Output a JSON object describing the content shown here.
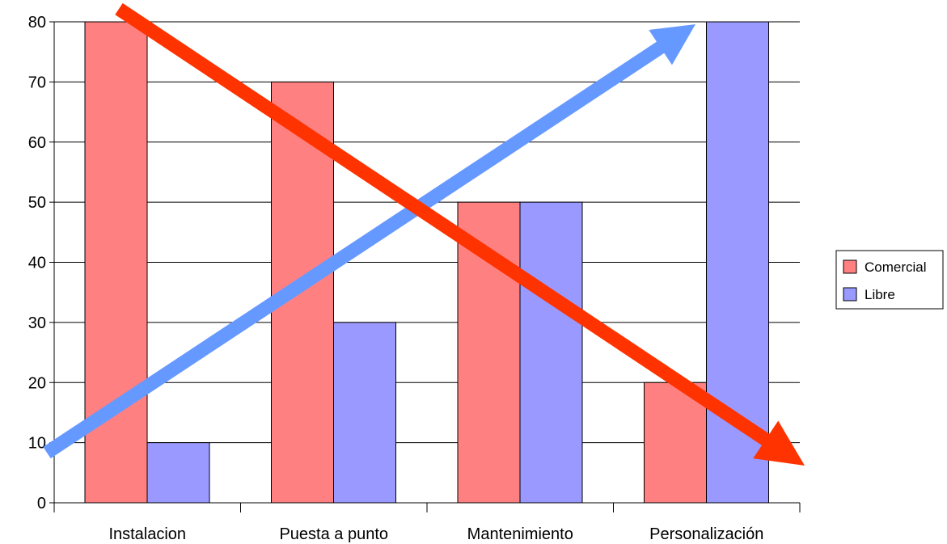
{
  "chart_data": {
    "type": "bar",
    "title": "",
    "xlabel": "",
    "ylabel": "",
    "categories": [
      "Instalacion",
      "Puesta a punto",
      "Mantenimiento",
      "Personalización"
    ],
    "series": [
      {
        "name": "Comercial",
        "values": [
          80,
          70,
          50,
          20
        ],
        "color": "#ff8080"
      },
      {
        "name": "Libre",
        "values": [
          10,
          30,
          50,
          80
        ],
        "color": "#9999ff"
      }
    ],
    "ylim": [
      0,
      80
    ],
    "yticks": [
      0,
      10,
      20,
      30,
      40,
      50,
      60,
      70,
      80
    ],
    "grid": true,
    "legend_position": "right",
    "overlay_arrows": [
      {
        "name": "decreasing-arrow",
        "color": "#ff3300",
        "direction": "down-right"
      },
      {
        "name": "increasing-arrow",
        "color": "#6699ff",
        "direction": "up-right"
      }
    ]
  }
}
